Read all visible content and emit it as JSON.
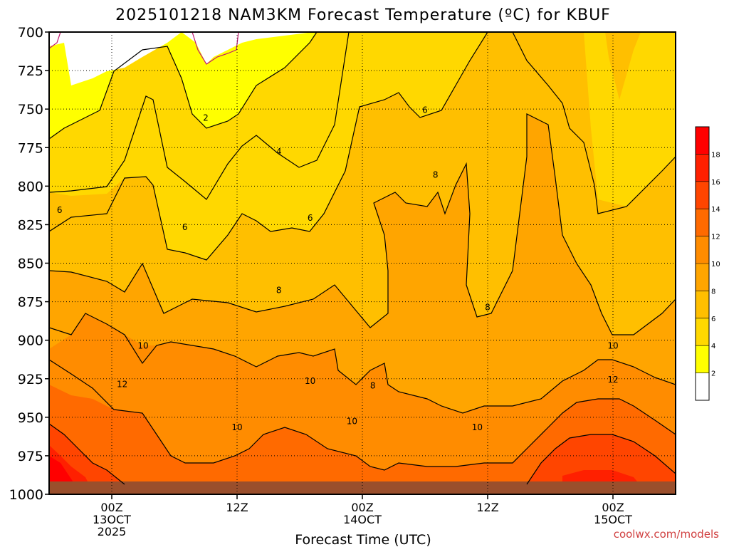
{
  "chart_data": {
    "type": "heatmap",
    "title": "2025101218 NAM3KM Forecast Temperature (ºC) for KBUF",
    "xlabel": "Forecast Time (UTC)",
    "ylabel": "",
    "credit": "coolwx.com/models",
    "y_axis": {
      "ticks": [
        700,
        725,
        750,
        775,
        800,
        825,
        850,
        875,
        900,
        925,
        950,
        975,
        1000
      ],
      "ylim": [
        700,
        1000
      ],
      "inverted": true,
      "grid": true
    },
    "x_axis": {
      "xlim_hours": [
        -6,
        54
      ],
      "ticks": [
        {
          "hour": 0,
          "lines": [
            "00Z",
            "13OCT",
            "2025"
          ]
        },
        {
          "hour": 12,
          "lines": [
            "12Z"
          ]
        },
        {
          "hour": 24,
          "lines": [
            "00Z",
            "14OCT"
          ]
        },
        {
          "hour": 36,
          "lines": [
            "12Z"
          ]
        },
        {
          "hour": 48,
          "lines": [
            "00Z",
            "15OCT"
          ]
        }
      ],
      "grid": true
    },
    "colorbar": {
      "levels": [
        2,
        4,
        6,
        8,
        10,
        12,
        14,
        16,
        18
      ],
      "colors": [
        "#ffffff",
        "#ffff00",
        "#ffd800",
        "#ffbf00",
        "#ffa500",
        "#ff8c00",
        "#ff6a00",
        "#ff4500",
        "#ff2000",
        "#ff0000"
      ]
    },
    "contour_labels": [
      {
        "text": "2",
        "hour": 9,
        "p": 757
      },
      {
        "text": "4",
        "hour": 16,
        "p": 779
      },
      {
        "text": "6",
        "hour": -5,
        "p": 817
      },
      {
        "text": "6",
        "hour": 7,
        "p": 828
      },
      {
        "text": "6",
        "hour": 19,
        "p": 822
      },
      {
        "text": "6",
        "hour": 30,
        "p": 752
      },
      {
        "text": "8",
        "hour": 16,
        "p": 869
      },
      {
        "text": "8",
        "hour": 31,
        "p": 794
      },
      {
        "text": "8",
        "hour": 36,
        "p": 880
      },
      {
        "text": "8",
        "hour": 25,
        "p": 931
      },
      {
        "text": "10",
        "hour": 3,
        "p": 905
      },
      {
        "text": "10",
        "hour": 19,
        "p": 928
      },
      {
        "text": "10",
        "hour": 12,
        "p": 958
      },
      {
        "text": "10",
        "hour": 23,
        "p": 954
      },
      {
        "text": "10",
        "hour": 35,
        "p": 958
      },
      {
        "text": "10",
        "hour": 48,
        "p": 905
      },
      {
        "text": "12",
        "hour": 1,
        "p": 930
      },
      {
        "text": "12",
        "hour": 48,
        "p": 927
      }
    ]
  }
}
